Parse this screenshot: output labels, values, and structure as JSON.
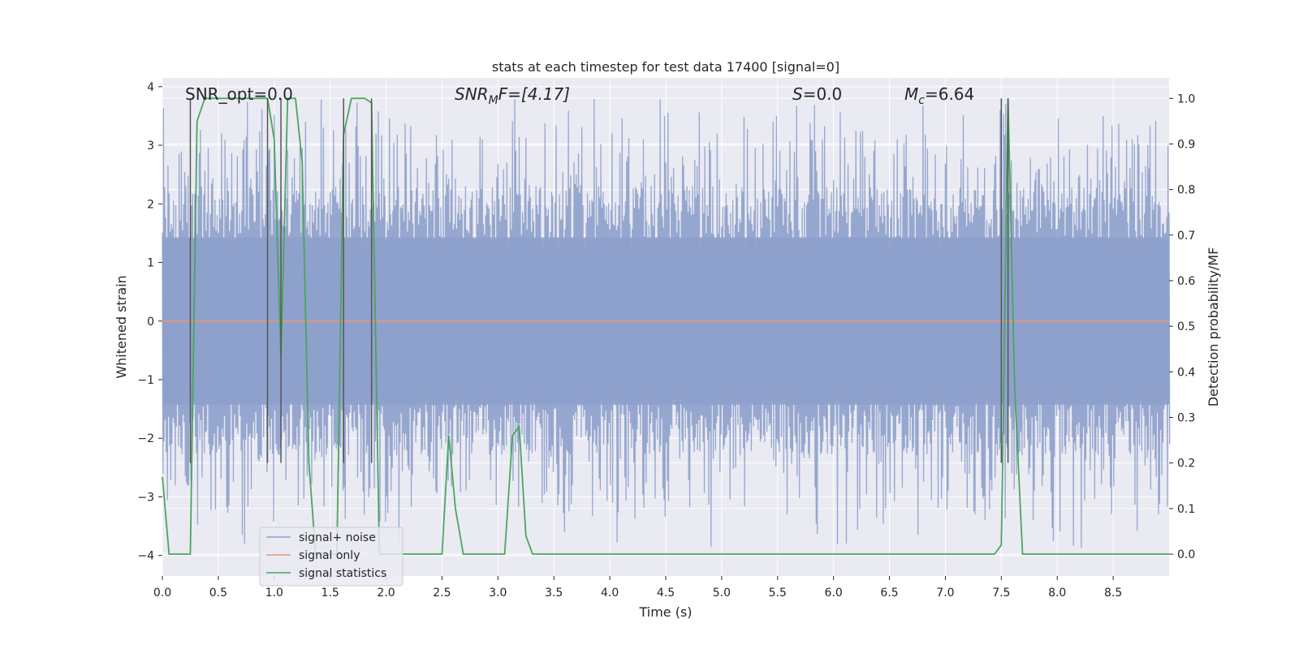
{
  "chart_data": {
    "type": "line",
    "title": "stats at each timestep for test data 17400 [signal=0]",
    "xlabel": "Time (s)",
    "ylabel": "Whitened strain",
    "y2label": "Detection probability/MF",
    "xlim": [
      0.0,
      9.0
    ],
    "ylim": [
      -4.35,
      4.15
    ],
    "y2lim": [
      -0.048,
      1.045
    ],
    "xticks": [
      "0.0",
      "0.5",
      "1.0",
      "1.5",
      "2.0",
      "2.5",
      "3.0",
      "3.5",
      "4.0",
      "4.5",
      "5.0",
      "5.5",
      "6.0",
      "6.5",
      "7.0",
      "7.5",
      "8.0",
      "8.5"
    ],
    "yticks": [
      "4",
      "3",
      "2",
      "1",
      "0",
      "−1",
      "−2",
      "−3",
      "−4"
    ],
    "y2ticks": [
      "1.0",
      "0.9",
      "0.8",
      "0.7",
      "0.6",
      "0.5",
      "0.4",
      "0.3",
      "0.2",
      "0.1",
      "0.0"
    ],
    "grid": true,
    "legend_position": "lower-left",
    "annotations": {
      "snr_opt": "SNR_opt=0.0",
      "snr_mf_main": "SNR",
      "snr_mf_sub": "M",
      "snr_mf_rest": "F=[4.17]",
      "s_main": "S",
      "s_rest": "=0.0",
      "mc_main": "M",
      "mc_sub": "c",
      "mc_rest": "=6.64"
    },
    "series": [
      {
        "name": "signal+ noise",
        "color": "#8da0cb",
        "axis": "left",
        "style": "noise",
        "core_amplitude": 2.3,
        "peak_amplitude": 3.9
      },
      {
        "name": "signal only",
        "color": "#e8957a",
        "axis": "left",
        "x": [
          0.0,
          9.0
        ],
        "y": [
          0.0,
          0.0
        ]
      },
      {
        "name": "signal statistics",
        "color": "#4aa55e",
        "axis": "right",
        "x": [
          0.0,
          0.06,
          0.25,
          0.31,
          0.38,
          0.94,
          1.0,
          1.06,
          1.12,
          1.19,
          1.25,
          1.31,
          1.37,
          1.56,
          1.62,
          1.69,
          1.81,
          1.87,
          1.94,
          2.5,
          2.56,
          2.62,
          2.69,
          3.06,
          3.13,
          3.19,
          3.25,
          3.31,
          7.44,
          7.5,
          7.56,
          7.62,
          7.69,
          9.0
        ],
        "y": [
          0.17,
          0.0,
          0.0,
          0.95,
          1.0,
          1.0,
          0.91,
          0.43,
          1.0,
          1.0,
          0.86,
          0.2,
          0.0,
          0.0,
          0.92,
          1.0,
          1.0,
          0.99,
          0.0,
          0.0,
          0.26,
          0.1,
          0.0,
          0.0,
          0.26,
          0.28,
          0.04,
          0.0,
          0.0,
          0.02,
          1.0,
          0.36,
          0.0,
          0.0
        ]
      }
    ],
    "vertical_markers": {
      "color": "#555555",
      "x": [
        0.25,
        0.94,
        1.06,
        1.62,
        1.87,
        7.5,
        7.56
      ],
      "y2_top": 1.0,
      "y2_bottom": 0.2
    }
  }
}
